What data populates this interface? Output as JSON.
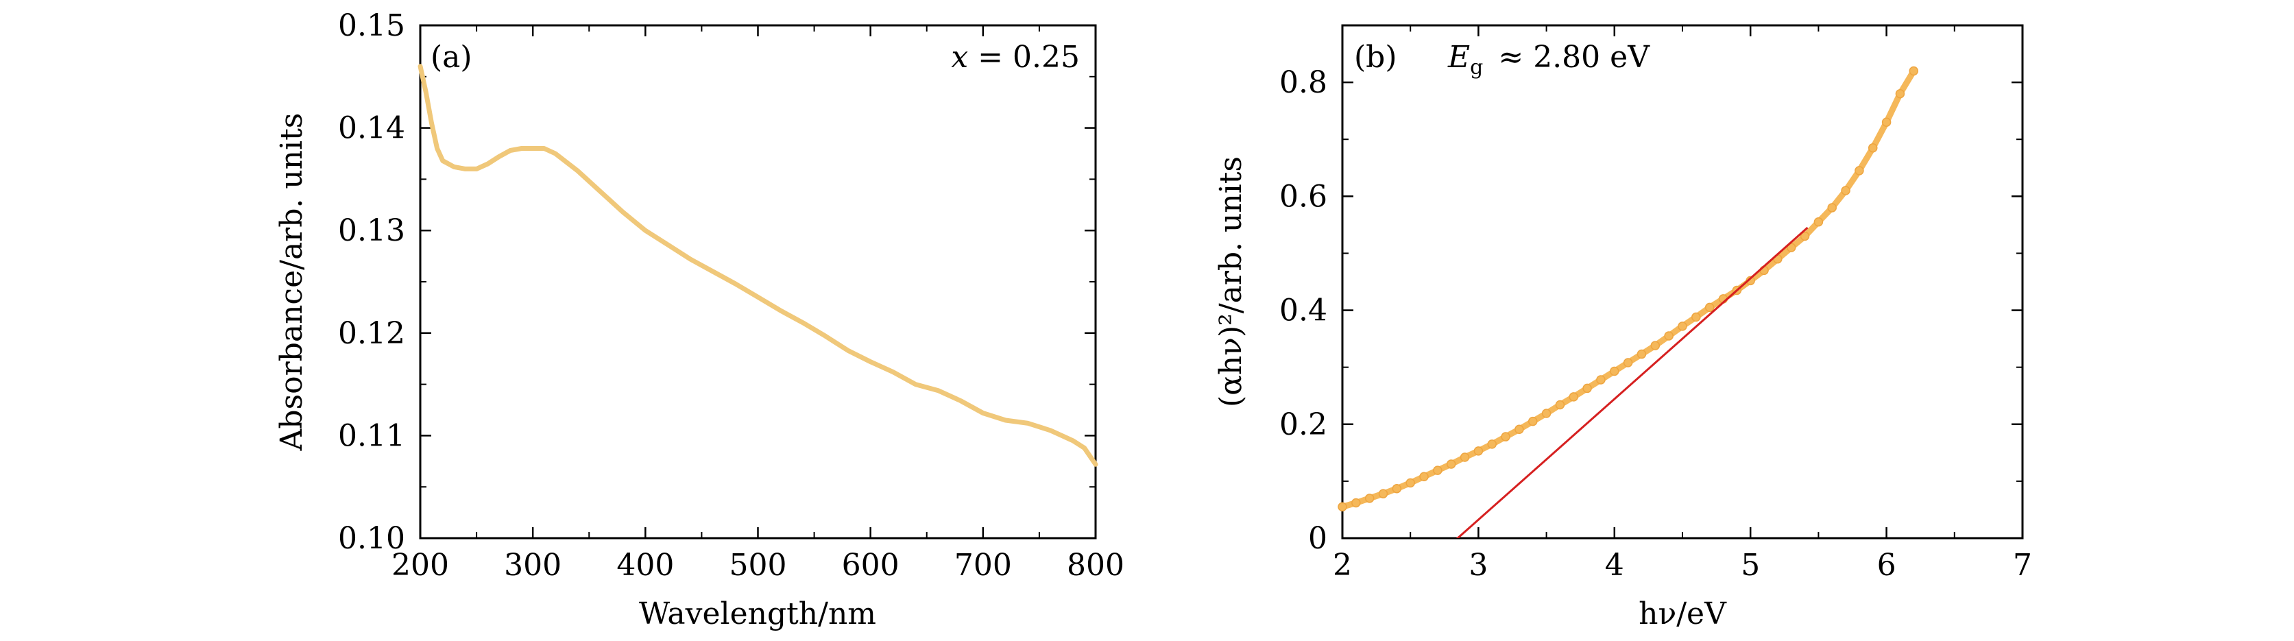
{
  "chart_data": [
    {
      "type": "line",
      "panel_label": "(a)",
      "annotation": "x = 0.25",
      "annotation_var": "x",
      "annotation_rest": " = 0.25",
      "xlabel": "Wavelength/nm",
      "ylabel": "Absorbance/arb. units",
      "xlim": [
        200,
        800
      ],
      "ylim": [
        0.1,
        0.15
      ],
      "xticks": [
        200,
        300,
        400,
        500,
        600,
        700,
        800
      ],
      "yticks": [
        0.1,
        0.11,
        0.12,
        0.13,
        0.14,
        0.15
      ],
      "xtick_labels": [
        "200",
        "300",
        "400",
        "500",
        "600",
        "700",
        "800"
      ],
      "ytick_labels": [
        "0.10",
        "0.11",
        "0.12",
        "0.13",
        "0.14",
        "0.15"
      ],
      "grid": false,
      "series": [
        {
          "color": "#f0c87a",
          "x": [
            200,
            205,
            210,
            215,
            220,
            230,
            240,
            250,
            260,
            270,
            280,
            290,
            300,
            310,
            320,
            340,
            360,
            380,
            400,
            420,
            440,
            460,
            480,
            500,
            520,
            540,
            560,
            580,
            600,
            620,
            640,
            660,
            680,
            700,
            720,
            740,
            760,
            780,
            790,
            800
          ],
          "y": [
            0.146,
            0.1435,
            0.1405,
            0.138,
            0.1368,
            0.1362,
            0.136,
            0.136,
            0.1365,
            0.1372,
            0.1378,
            0.138,
            0.138,
            0.138,
            0.1375,
            0.1358,
            0.1338,
            0.1318,
            0.13,
            0.1286,
            0.1272,
            0.126,
            0.1248,
            0.1235,
            0.1222,
            0.121,
            0.1197,
            0.1183,
            0.1172,
            0.1162,
            0.115,
            0.1144,
            0.1134,
            0.1122,
            0.1115,
            0.1112,
            0.1105,
            0.1095,
            0.1088,
            0.1072
          ]
        }
      ]
    },
    {
      "type": "scatter",
      "panel_label": "(b)",
      "annotation": "Eg ≈ 2.80 eV",
      "annotation_var": "E",
      "annotation_sub": "g",
      "annotation_rest": "≈ 2.80 eV",
      "xlabel": "hν/eV",
      "ylabel": "(αhν)²/arb. units",
      "xlim": [
        2,
        7
      ],
      "ylim": [
        0,
        0.9
      ],
      "xticks": [
        2,
        3,
        4,
        5,
        6,
        7
      ],
      "yticks": [
        0,
        0.2,
        0.4,
        0.6,
        0.8
      ],
      "xtick_labels": [
        "2",
        "3",
        "4",
        "5",
        "6",
        "7"
      ],
      "ytick_labels": [
        "0",
        "0.2",
        "0.4",
        "0.6",
        "0.8"
      ],
      "grid": false,
      "series": [
        {
          "color": "#f5b85a",
          "x": [
            2.0,
            2.1,
            2.2,
            2.3,
            2.4,
            2.5,
            2.6,
            2.7,
            2.8,
            2.9,
            3.0,
            3.1,
            3.2,
            3.3,
            3.4,
            3.5,
            3.6,
            3.7,
            3.8,
            3.9,
            4.0,
            4.1,
            4.2,
            4.3,
            4.4,
            4.5,
            4.6,
            4.7,
            4.8,
            4.9,
            5.0,
            5.1,
            5.2,
            5.3,
            5.4,
            5.5,
            5.6,
            5.7,
            5.8,
            5.9,
            6.0,
            6.1,
            6.2
          ],
          "y": [
            0.055,
            0.062,
            0.07,
            0.078,
            0.087,
            0.097,
            0.108,
            0.119,
            0.13,
            0.142,
            0.153,
            0.165,
            0.178,
            0.191,
            0.205,
            0.219,
            0.234,
            0.248,
            0.263,
            0.278,
            0.293,
            0.308,
            0.323,
            0.338,
            0.355,
            0.372,
            0.388,
            0.405,
            0.42,
            0.435,
            0.452,
            0.47,
            0.49,
            0.51,
            0.53,
            0.555,
            0.58,
            0.61,
            0.645,
            0.685,
            0.73,
            0.78,
            0.82
          ]
        }
      ],
      "fit_line": {
        "color": "#d62020",
        "x": [
          2.8,
          5.42
        ],
        "y": [
          -0.01,
          0.545
        ]
      }
    }
  ]
}
